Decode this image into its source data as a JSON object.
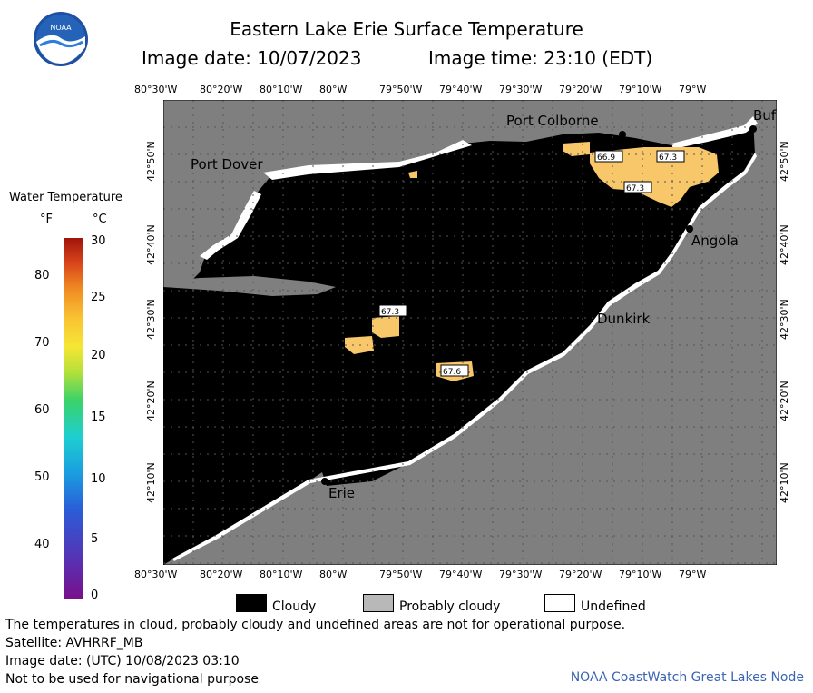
{
  "header": {
    "title": "Eastern Lake Erie Surface Temperature",
    "image_date": "Image date: 10/07/2023",
    "image_time": "Image time: 23:10 (EDT)",
    "logo_text": "NOAA"
  },
  "map": {
    "lon_labels": [
      "80°30'W",
      "80°20'W",
      "80°10'W",
      "80°W",
      "79°50'W",
      "79°40'W",
      "79°30'W",
      "79°20'W",
      "79°10'W",
      "79°W"
    ],
    "lat_labels": [
      "42°50'N",
      "42°40'N",
      "42°30'N",
      "42°20'N",
      "42°10'N"
    ],
    "places": [
      {
        "name": "Port Colborne"
      },
      {
        "name": "Buf"
      },
      {
        "name": "Port Dover"
      },
      {
        "name": "Angola"
      },
      {
        "name": "Dunkirk"
      },
      {
        "name": "Erie"
      }
    ],
    "temp_labels": [
      "66.9",
      "67.3",
      "67.3",
      "67.3",
      "67.6"
    ],
    "colors": {
      "water_cloud": "#000000",
      "land": "#7f7f7f",
      "warm_water": "#f7c76a",
      "probably_cloudy": "#7f7f7f",
      "undefined": "#ffffff"
    }
  },
  "colorbar": {
    "title": "Water Temperature",
    "unit_f": "°F",
    "unit_c": "°C",
    "f_ticks": [
      "80",
      "70",
      "60",
      "50",
      "40"
    ],
    "c_ticks": [
      "30",
      "25",
      "20",
      "15",
      "10",
      "5",
      "0"
    ]
  },
  "legend": {
    "cloudy": "Cloudy",
    "probably_cloudy": "Probably cloudy",
    "undefined": "Undefined"
  },
  "footer": {
    "disclaimer": "The temperatures in cloud, probably cloudy and undefined areas are not for operational purpose.",
    "satellite": "Satellite: AVHRRF_MB",
    "utc_date": "Image date: (UTC) 10/08/2023  03:10",
    "nav_warning": "Not to be used for navigational purpose",
    "credit": "NOAA CoastWatch Great Lakes Node"
  }
}
